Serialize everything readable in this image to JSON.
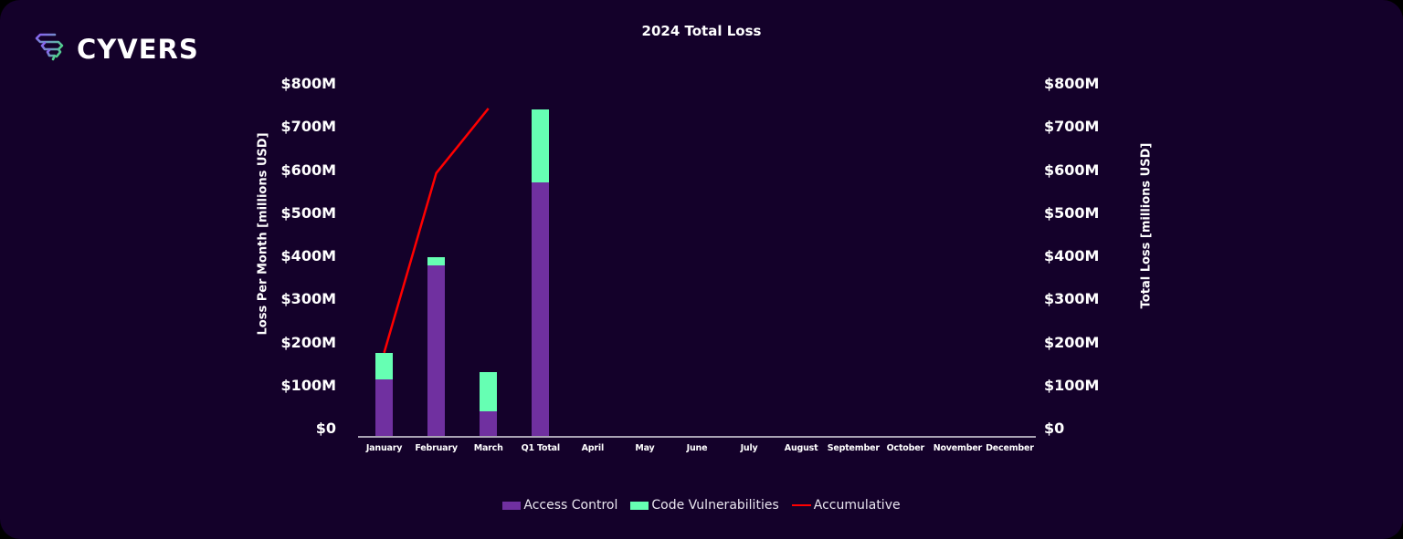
{
  "brand": {
    "name": "CYVERS",
    "icon": "cyvers-logo-icon"
  },
  "colors": {
    "background": "#14012a",
    "access_control": "#7030a0",
    "code_vulnerabilities": "#66ffb3",
    "accumulative": "#ff0000",
    "axis": "#a9a3b3",
    "text": "#ffffff"
  },
  "chart_data": {
    "type": "bar",
    "stacked": true,
    "title": "2024 Total Loss",
    "xlabel": "",
    "ylabel": "Loss Per Month [millions USD]",
    "ylabel_right": "Total Loss [millions USD]",
    "ylim": [
      0,
      800
    ],
    "ylim_right": [
      0,
      800
    ],
    "yticks": [
      "$0",
      "$100M",
      "$200M",
      "$300M",
      "$400M",
      "$500M",
      "$600M",
      "$700M",
      "$800M"
    ],
    "categories": [
      "January",
      "February",
      "March",
      "Q1 Total",
      "April",
      "May",
      "June",
      "July",
      "August",
      "September",
      "October",
      "November",
      "December"
    ],
    "series": [
      {
        "name": "Access Control",
        "type": "bar",
        "values": [
          133,
          397,
          59,
          590,
          null,
          null,
          null,
          null,
          null,
          null,
          null,
          null,
          null
        ]
      },
      {
        "name": "Code Vulnerabilities",
        "type": "bar",
        "values": [
          62,
          20,
          91,
          170,
          null,
          null,
          null,
          null,
          null,
          null,
          null,
          null,
          null
        ]
      },
      {
        "name": "Accumulative",
        "type": "line",
        "axis": "right",
        "values": [
          195,
          612,
          762,
          null,
          null,
          null,
          null,
          null,
          null,
          null,
          null,
          null,
          null
        ]
      }
    ],
    "legend_position": "bottom",
    "grid": false
  },
  "legend": [
    {
      "label": "Access Control",
      "kind": "box"
    },
    {
      "label": "Code Vulnerabilities",
      "kind": "box"
    },
    {
      "label": "Accumulative",
      "kind": "line"
    }
  ]
}
